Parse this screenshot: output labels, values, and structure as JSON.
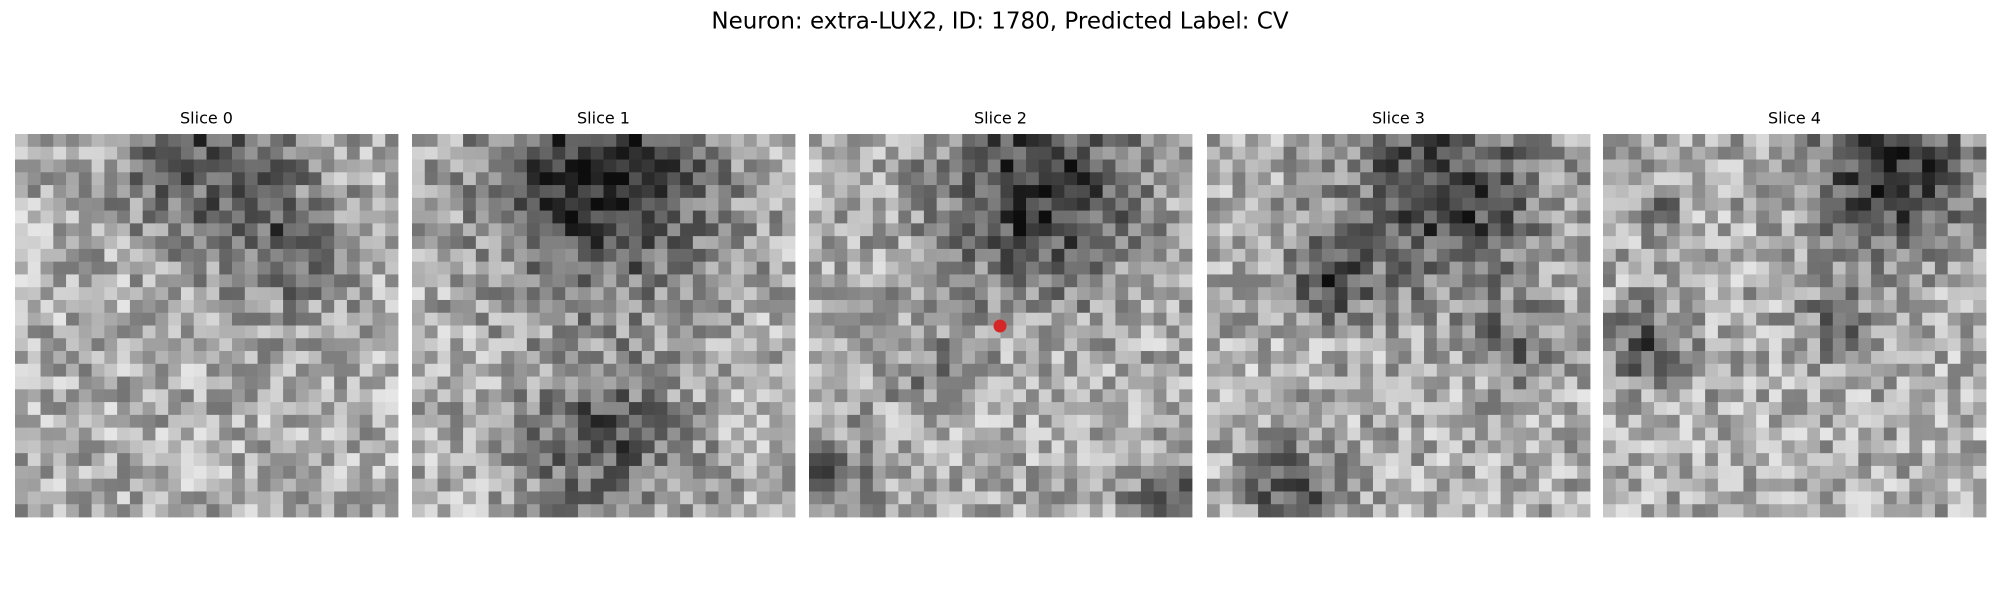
{
  "title": "Neuron: extra-LUX2, ID: 1780, Predicted Label: CV",
  "panels": [
    {
      "title": "Slice 0"
    },
    {
      "title": "Slice 1"
    },
    {
      "title": "Slice 2"
    },
    {
      "title": "Slice 3"
    },
    {
      "title": "Slice 4"
    }
  ]
}
